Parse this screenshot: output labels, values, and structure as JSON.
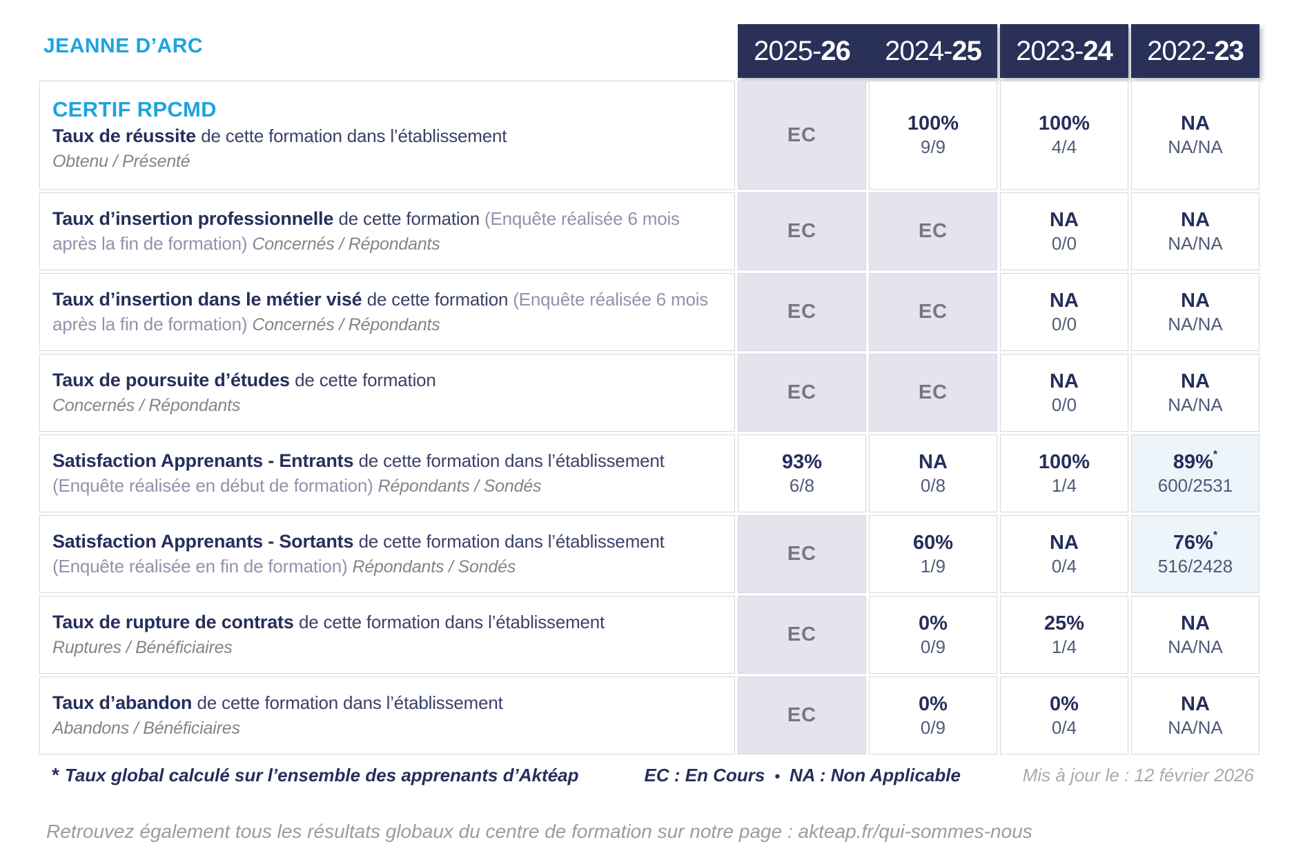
{
  "header": {
    "school": "JEANNE D’ARC",
    "years": [
      {
        "pre": "2025-",
        "bold": "26"
      },
      {
        "pre": "2024-",
        "bold": "25"
      },
      {
        "pre": "2023-",
        "bold": "24"
      },
      {
        "pre": "2022-",
        "bold": "23"
      }
    ]
  },
  "rows": [
    {
      "heading": "CERTIF RPCMD",
      "title": [
        {
          "s": "b",
          "t": "Taux de réussite "
        },
        {
          "s": "n",
          "t": "de cette formation dans l’établissement"
        }
      ],
      "subline": "Obtenu / Présenté",
      "cells": [
        {
          "v": "EC",
          "ec": true
        },
        {
          "v": "100%",
          "sub": "9/9"
        },
        {
          "v": "100%",
          "sub": "4/4"
        },
        {
          "v": "NA",
          "sub": "NA/NA"
        }
      ]
    },
    {
      "title": [
        {
          "s": "b",
          "t": "Taux d’insertion professionnelle "
        },
        {
          "s": "n",
          "t": "de cette formation "
        },
        {
          "s": "m",
          "t": "(Enquête réalisée 6 mois après la fin de formation) "
        },
        {
          "s": "i",
          "t": "Concernés / Répondants"
        }
      ],
      "cells": [
        {
          "v": "EC",
          "ec": true
        },
        {
          "v": "EC",
          "ec": true
        },
        {
          "v": "NA",
          "sub": "0/0"
        },
        {
          "v": "NA",
          "sub": "NA/NA"
        }
      ]
    },
    {
      "title": [
        {
          "s": "b",
          "t": "Taux d’insertion dans le métier visé "
        },
        {
          "s": "n",
          "t": "de cette formation "
        },
        {
          "s": "m",
          "t": "(Enquête réalisée 6 mois après la fin de formation) "
        },
        {
          "s": "i",
          "t": "Concernés / Répondants"
        }
      ],
      "cells": [
        {
          "v": "EC",
          "ec": true
        },
        {
          "v": "EC",
          "ec": true
        },
        {
          "v": "NA",
          "sub": "0/0"
        },
        {
          "v": "NA",
          "sub": "NA/NA"
        }
      ]
    },
    {
      "title": [
        {
          "s": "b",
          "t": "Taux de poursuite d’études "
        },
        {
          "s": "n",
          "t": "de cette formation"
        }
      ],
      "subline": "Concernés / Répondants",
      "cells": [
        {
          "v": "EC",
          "ec": true
        },
        {
          "v": "EC",
          "ec": true
        },
        {
          "v": "NA",
          "sub": "0/0"
        },
        {
          "v": "NA",
          "sub": "NA/NA"
        }
      ]
    },
    {
      "title": [
        {
          "s": "b",
          "t": "Satisfaction Apprenants - Entrants "
        },
        {
          "s": "n",
          "t": "de cette formation dans l’établissement "
        },
        {
          "s": "m",
          "t": "(Enquête réalisée en début de formation) "
        },
        {
          "s": "i",
          "t": "Répondants / Sondés"
        }
      ],
      "cells": [
        {
          "v": "93%",
          "sub": "6/8"
        },
        {
          "v": "NA",
          "sub": "0/8"
        },
        {
          "v": "100%",
          "sub": "1/4"
        },
        {
          "v": "89%",
          "sub": "600/2531",
          "star": true,
          "hl": true
        }
      ]
    },
    {
      "title": [
        {
          "s": "b",
          "t": "Satisfaction Apprenants - Sortants "
        },
        {
          "s": "n",
          "t": "de cette formation dans l’établissement "
        },
        {
          "s": "m",
          "t": "(Enquête réalisée en fin de formation) "
        },
        {
          "s": "i",
          "t": "Répondants / Sondés"
        }
      ],
      "cells": [
        {
          "v": "EC",
          "ec": true
        },
        {
          "v": "60%",
          "sub": "1/9"
        },
        {
          "v": "NA",
          "sub": "0/4"
        },
        {
          "v": "76%",
          "sub": "516/2428",
          "star": true,
          "hl": true
        }
      ]
    },
    {
      "title": [
        {
          "s": "b",
          "t": "Taux de rupture de contrats "
        },
        {
          "s": "n",
          "t": "de cette formation dans l’établissement"
        }
      ],
      "subline": "Ruptures / Bénéficiaires",
      "cells": [
        {
          "v": "EC",
          "ec": true
        },
        {
          "v": "0%",
          "sub": "0/9"
        },
        {
          "v": "25%",
          "sub": "1/4"
        },
        {
          "v": "NA",
          "sub": "NA/NA"
        }
      ]
    },
    {
      "title": [
        {
          "s": "b",
          "t": "Taux d’abandon "
        },
        {
          "s": "n",
          "t": "de cette formation dans l’établissement"
        }
      ],
      "subline": "Abandons / Bénéficiaires",
      "cells": [
        {
          "v": "EC",
          "ec": true
        },
        {
          "v": "0%",
          "sub": "0/9"
        },
        {
          "v": "0%",
          "sub": "0/4"
        },
        {
          "v": "NA",
          "sub": "NA/NA"
        }
      ]
    }
  ],
  "footer": {
    "star": "*",
    "note": "Taux global calculé sur l’ensemble des apprenants d’Aktéap",
    "legend_ec": "EC : En Cours",
    "legend_sep": "•",
    "legend_na": "NA : Non Applicable",
    "updated": "Mis à jour le : 12 février 2026",
    "bottom_text": "Retrouvez également tous les résultats globaux du centre de formation sur notre page : ",
    "bottom_url": "akteap.fr/qui-sommes-nous"
  },
  "colors": {
    "header_navy": "#2a3158",
    "text_navy": "#262e5c",
    "accent_blue": "#1da3e0",
    "ec_cell_bg": "#e5e4ee",
    "highlight_cell_bg": "#edf4fa",
    "cell_border": "#d5d5de",
    "muted_gray": "#9093ab"
  }
}
